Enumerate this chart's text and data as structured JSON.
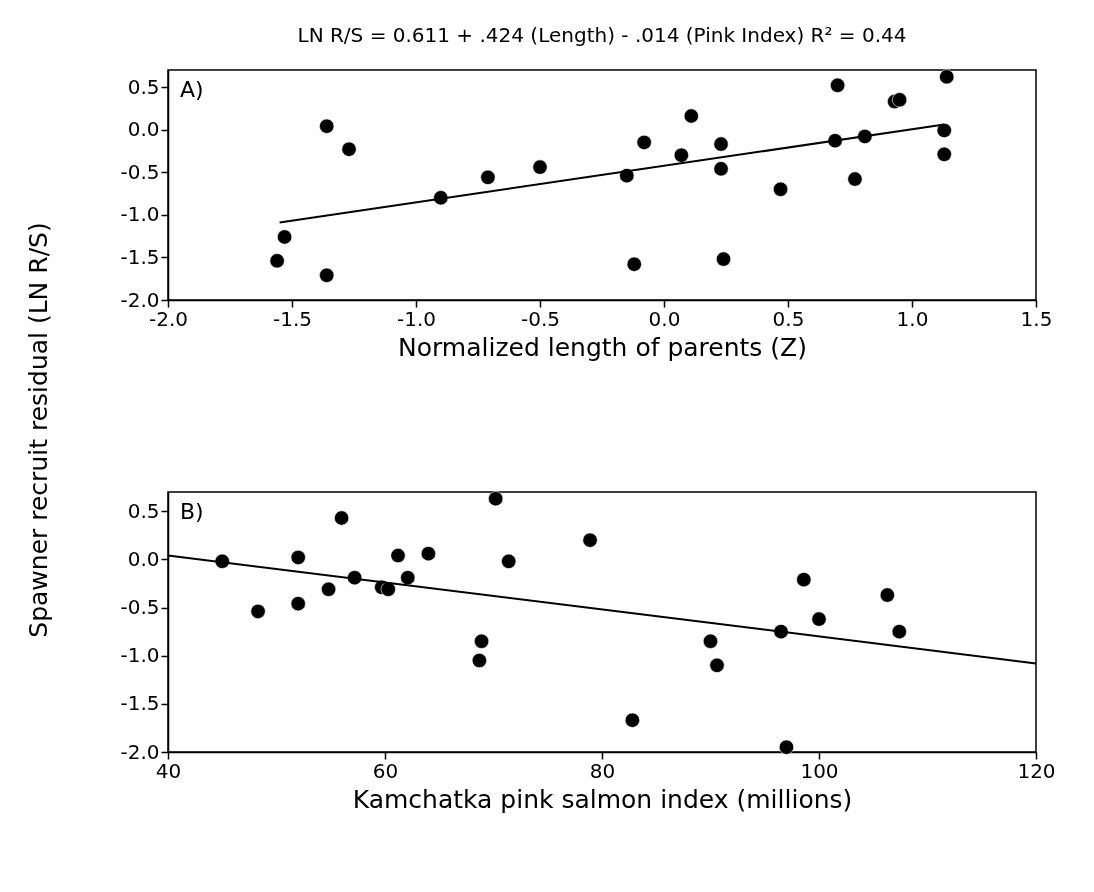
{
  "chart_data": [
    {
      "type": "scatter",
      "title": "LN R/S = 0.611 + .424 (Length) - .014 (Pink Index) R² = 0.44",
      "xlabel": "Normalized length of parents (Z)",
      "ylabel": "Spawner recruit residual (LN R/S)",
      "annotations": [
        "A)"
      ],
      "grid": false,
      "xlim": [
        -2.0,
        1.5
      ],
      "ylim": [
        -2.0,
        0.7
      ],
      "xticks": [
        {
          "value": -2,
          "label": "-2.0"
        },
        {
          "value": -1.5,
          "label": "-1.5"
        },
        {
          "value": -1,
          "label": "-1.0"
        },
        {
          "value": -0.5,
          "label": "-0.5"
        },
        {
          "value": 0,
          "label": "0.0"
        },
        {
          "value": 0.5,
          "label": "0.5"
        },
        {
          "value": 1,
          "label": "1.0"
        },
        {
          "value": 1.5,
          "label": "1.5"
        }
      ],
      "yticks": [
        {
          "value": -2,
          "label": "-2.0"
        },
        {
          "value": -1.5,
          "label": "-1.5"
        },
        {
          "value": -1,
          "label": "-1.0"
        },
        {
          "value": -0.5,
          "label": "-0.5"
        },
        {
          "value": 0,
          "label": "0.0"
        },
        {
          "value": 0.5,
          "label": "0.5"
        }
      ],
      "series": [
        {
          "marker": "circle",
          "color": "#000000",
          "x": [
            -1.56,
            -1.53,
            -1.36,
            -1.36,
            -1.27,
            -0.9,
            -0.71,
            -0.5,
            -0.15,
            -0.08,
            -0.12,
            0.07,
            0.11,
            0.23,
            0.23,
            0.24,
            0.47,
            0.69,
            0.7,
            0.77,
            0.81,
            0.93,
            0.95,
            1.13,
            1.13,
            1.14
          ],
          "values": [
            -1.54,
            -1.26,
            0.04,
            -1.71,
            -0.23,
            -0.8,
            -0.56,
            -0.44,
            -0.54,
            -0.15,
            -1.58,
            -0.3,
            0.16,
            -0.17,
            -0.46,
            -1.52,
            -0.7,
            -0.13,
            0.52,
            -0.58,
            -0.08,
            0.33,
            0.35,
            -0.01,
            -0.29,
            0.62
          ]
        },
        {
          "type": "line",
          "marker": "none",
          "color": "#000000",
          "x": [
            -1.55,
            1.13
          ],
          "values": [
            -1.09,
            0.06
          ]
        }
      ]
    },
    {
      "type": "scatter",
      "xlabel": "Kamchatka pink salmon index (millions)",
      "annotations": [
        "B)"
      ],
      "grid": false,
      "xlim": [
        40,
        120
      ],
      "ylim": [
        -2.0,
        0.7
      ],
      "xticks": [
        40,
        60,
        80,
        100,
        120
      ],
      "yticks": [
        {
          "value": -2,
          "label": "-2.0"
        },
        {
          "value": -1.5,
          "label": "-1.5"
        },
        {
          "value": -1,
          "label": "-1.0"
        },
        {
          "value": -0.5,
          "label": "-0.5"
        },
        {
          "value": 0,
          "label": "0.0"
        },
        {
          "value": 0.5,
          "label": "0.5"
        }
      ],
      "series": [
        {
          "marker": "circle",
          "color": "#000000",
          "x": [
            45,
            48.3,
            52,
            52,
            54.8,
            56,
            57.2,
            59.7,
            60.3,
            61.2,
            62.1,
            64,
            68.7,
            68.9,
            70.2,
            71.4,
            78.9,
            82.8,
            90,
            90.6,
            96.5,
            97,
            98.6,
            100,
            106.3,
            107.4
          ],
          "values": [
            -0.02,
            -0.54,
            0.02,
            -0.46,
            -0.31,
            0.43,
            -0.19,
            -0.29,
            -0.31,
            0.04,
            -0.19,
            0.06,
            -1.05,
            -0.85,
            0.63,
            -0.02,
            0.2,
            -1.67,
            -0.85,
            -1.1,
            -0.75,
            -1.95,
            -0.21,
            -0.62,
            -0.37,
            -0.75
          ]
        },
        {
          "type": "line",
          "marker": "none",
          "color": "#000000",
          "x": [
            40,
            120
          ],
          "values": [
            0.04,
            -1.08
          ]
        }
      ]
    }
  ]
}
